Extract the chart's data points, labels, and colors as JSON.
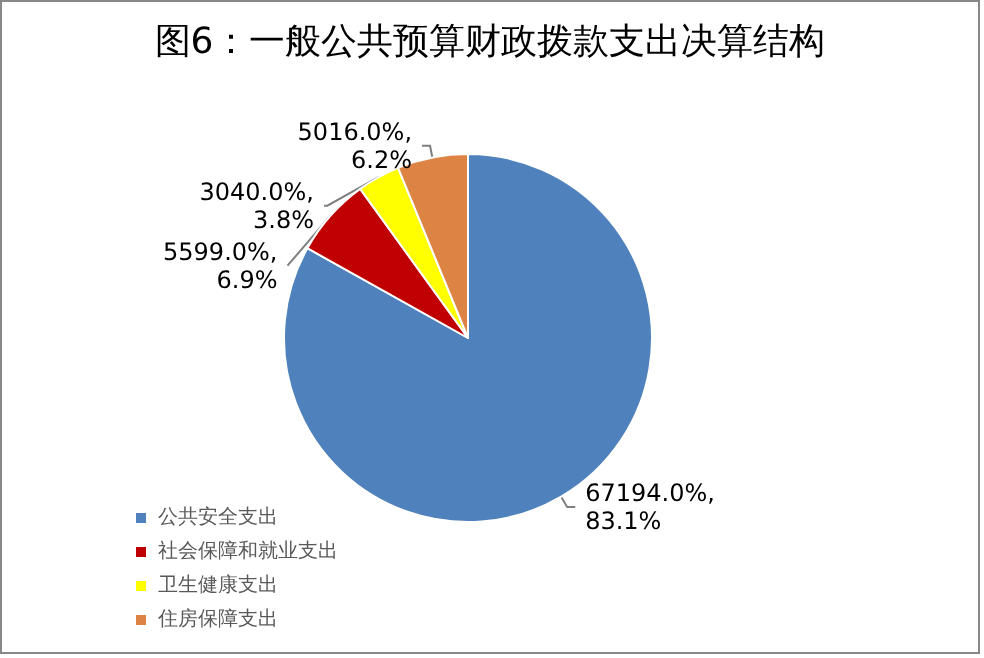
{
  "chart_data": {
    "type": "pie",
    "title": "图6：一般公共预算财政拨款支出决算结构",
    "categories": [
      "公共安全支出",
      "社会保障和就业支出",
      "卫生健康支出",
      "住房保障支出"
    ],
    "values": [
      67194,
      5599,
      3040,
      5016
    ],
    "value_labels": [
      "67194.0%,\n83.1%",
      "5599.0%,\n6.9%",
      "3040.0%,\n3.8%",
      "5016.0%,\n6.2%"
    ],
    "colors": [
      "#4f81bd",
      "#c00000",
      "#ffff00",
      "#dd8444"
    ],
    "legend": "bottom left"
  }
}
